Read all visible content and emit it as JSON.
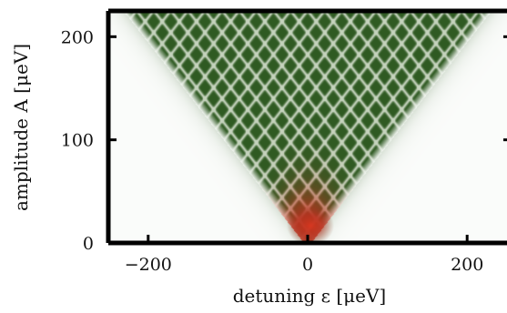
{
  "chart_data": {
    "type": "heatmap",
    "title": "",
    "xlabel": "detuning ε [μeV]",
    "ylabel": "amplitude A [μeV]",
    "xlim": [
      -250,
      250
    ],
    "ylim": [
      0,
      225
    ],
    "xticks": [
      -200,
      0,
      200
    ],
    "yticks": [
      0,
      100,
      200
    ],
    "xtick_labels": [
      "−200",
      "0",
      "200"
    ],
    "ytick_labels": [
      "0",
      "100",
      "200"
    ],
    "description_of_pattern": "",
    "colors": {
      "background": "#ffffff",
      "low": "#f2f6f1",
      "mid": "#2f5a22",
      "high": "#c8321f",
      "ridge": "#dfe8d8"
    }
  }
}
